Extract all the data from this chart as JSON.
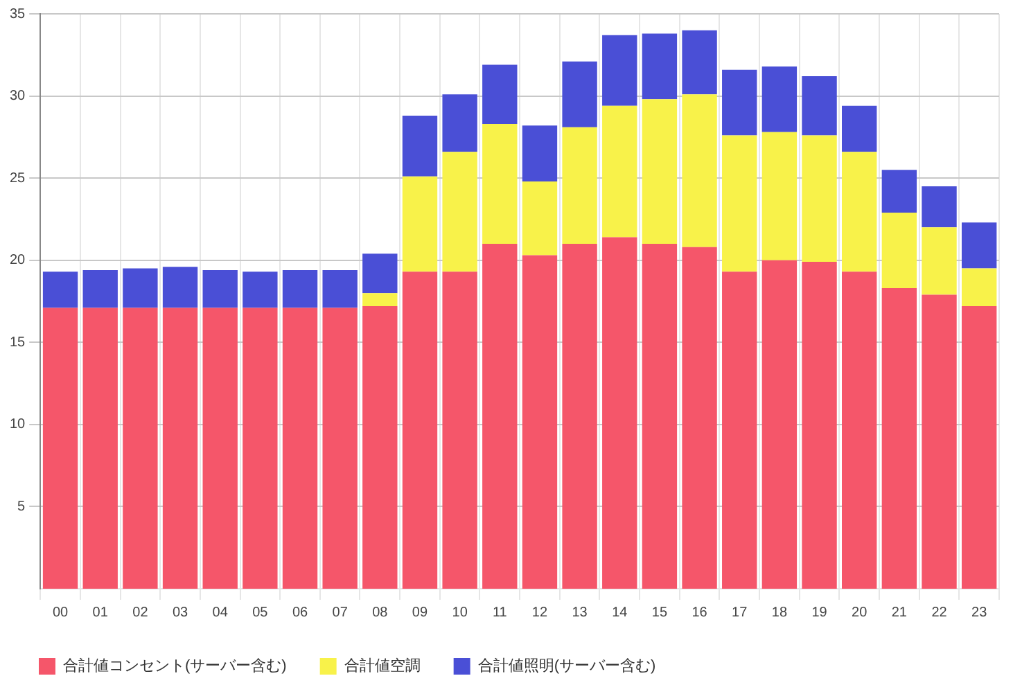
{
  "chart_data": {
    "type": "bar",
    "stacked": true,
    "categories": [
      "00",
      "01",
      "02",
      "03",
      "04",
      "05",
      "06",
      "07",
      "08",
      "09",
      "10",
      "11",
      "12",
      "13",
      "14",
      "15",
      "16",
      "17",
      "18",
      "19",
      "20",
      "21",
      "22",
      "23"
    ],
    "series": [
      {
        "name": "合計値コンセント(サーバー含む)",
        "color": "#f5566a",
        "values": [
          17.1,
          17.1,
          17.1,
          17.1,
          17.1,
          17.1,
          17.1,
          17.1,
          17.2,
          19.3,
          19.3,
          21.0,
          20.3,
          21.0,
          21.4,
          21.0,
          20.8,
          19.3,
          20.0,
          19.9,
          19.3,
          18.3,
          17.9,
          17.2
        ]
      },
      {
        "name": "合計値空調",
        "color": "#f8f24a",
        "values": [
          0,
          0,
          0,
          0,
          0,
          0,
          0,
          0,
          0.8,
          5.8,
          7.3,
          7.3,
          4.5,
          7.1,
          8.0,
          8.8,
          9.3,
          8.3,
          7.8,
          7.7,
          7.3,
          4.6,
          4.1,
          2.3
        ]
      },
      {
        "name": "合計値照明(サーバー含む)",
        "color": "#4a4fd6",
        "values": [
          2.2,
          2.3,
          2.4,
          2.5,
          2.3,
          2.2,
          2.3,
          2.3,
          2.4,
          3.7,
          3.5,
          3.6,
          3.4,
          4.0,
          4.3,
          4.0,
          3.9,
          4.0,
          4.0,
          3.6,
          2.8,
          2.6,
          2.5,
          2.8
        ]
      }
    ],
    "ylim": [
      0,
      35
    ],
    "yticks": [
      5,
      10,
      15,
      20,
      25,
      30,
      35
    ],
    "grid": true,
    "legend": "bottom left"
  }
}
